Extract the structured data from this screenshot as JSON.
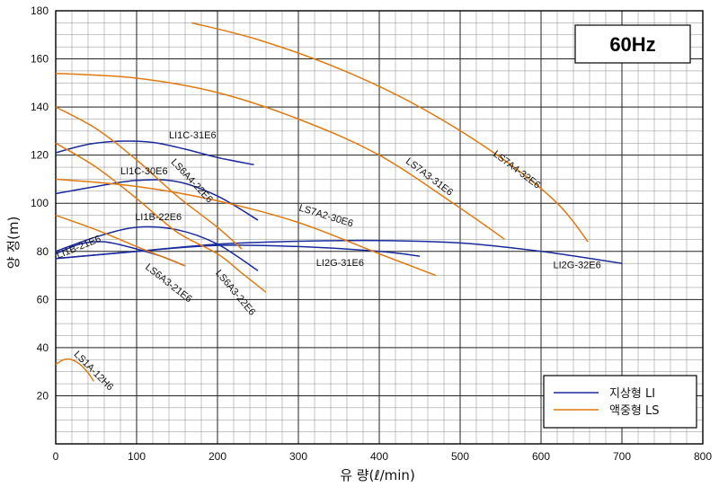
{
  "chart_data": {
    "type": "line",
    "x_ticks": [
      "0",
      "100",
      "200",
      "300",
      "400",
      "500",
      "600",
      "700",
      "800"
    ],
    "y_ticks": [
      "20",
      "40",
      "60",
      "80",
      "100",
      "120",
      "140",
      "160",
      "180"
    ],
    "xlim": [
      0,
      800
    ],
    "ylim": [
      0,
      180
    ],
    "xlabel": "유   량(ℓ/min)",
    "ylabel": "양 정(m)",
    "frequency_badge": "60Hz",
    "grid": true,
    "legend_position": "bottom-right",
    "legend": [
      {
        "label": "지상형 LI",
        "color": "#1a2a9c"
      },
      {
        "label": "액중형 LS",
        "color": "#e07a10"
      }
    ],
    "series": [
      {
        "name": "LI1C-31E6",
        "family": "LI",
        "color": "#1a2a9c",
        "x": [
          0,
          40,
          80,
          120,
          160,
          200,
          245
        ],
        "y": [
          121,
          124.5,
          125.8,
          125.3,
          122.5,
          119,
          116
        ]
      },
      {
        "name": "LI1C-30E6",
        "family": "LI",
        "color": "#1a2a9c",
        "x": [
          0,
          50,
          100,
          150,
          200,
          250
        ],
        "y": [
          104,
          107,
          109.5,
          109,
          103,
          93
        ]
      },
      {
        "name": "LI1B-22E6",
        "family": "LI",
        "color": "#1a2a9c",
        "x": [
          0,
          50,
          100,
          150,
          200,
          250
        ],
        "y": [
          80,
          86,
          90,
          89,
          83,
          72
        ]
      },
      {
        "name": "LI1B-21E6",
        "family": "LI",
        "color": "#1a2a9c",
        "x": [
          0,
          30,
          60,
          100,
          130,
          160
        ],
        "y": [
          79,
          83,
          84,
          81,
          78,
          74
        ]
      },
      {
        "name": "LI2G-31E6",
        "family": "LI",
        "color": "#1a2a9c",
        "x": [
          0,
          100,
          200,
          300,
          400,
          450
        ],
        "y": [
          77,
          80,
          82.5,
          82,
          80,
          78
        ]
      },
      {
        "name": "LI2G-32E6",
        "family": "LI",
        "color": "#1a2a9c",
        "x": [
          0,
          100,
          200,
          300,
          400,
          500,
          600,
          700
        ],
        "y": [
          77,
          80,
          83,
          84.2,
          84.5,
          83.5,
          80,
          75
        ]
      },
      {
        "name": "LS1A-12H6",
        "family": "LS",
        "color": "#e07a10",
        "x": [
          0,
          10,
          20,
          30,
          40,
          47
        ],
        "y": [
          33,
          35,
          35,
          33,
          29.5,
          26
        ]
      },
      {
        "name": "LS6A3-21E6",
        "family": "LS",
        "color": "#e07a10",
        "x": [
          0,
          50,
          100,
          130,
          160
        ],
        "y": [
          95,
          89,
          82,
          78,
          74
        ]
      },
      {
        "name": "LS6A3-22E6",
        "family": "LS",
        "color": "#e07a10",
        "x": [
          0,
          50,
          100,
          150,
          200,
          230,
          260
        ],
        "y": [
          125,
          115,
          102,
          88,
          79,
          71,
          63
        ]
      },
      {
        "name": "LS6A4-22E6",
        "family": "LS",
        "color": "#e07a10",
        "x": [
          0,
          50,
          100,
          150,
          200,
          230
        ],
        "y": [
          140,
          131,
          118,
          103,
          90,
          81
        ]
      },
      {
        "name": "LS7A2-30E6",
        "family": "LS",
        "color": "#e07a10",
        "x": [
          0,
          100,
          200,
          300,
          400,
          470
        ],
        "y": [
          110,
          107,
          101,
          92,
          79,
          70
        ]
      },
      {
        "name": "LS7A3-31E6",
        "family": "LS",
        "color": "#e07a10",
        "x": [
          0,
          100,
          200,
          300,
          400,
          500,
          555
        ],
        "y": [
          154,
          152,
          146,
          135,
          120,
          98,
          85
        ]
      },
      {
        "name": "LS7A4-32E6",
        "family": "LS",
        "color": "#e07a10",
        "x": [
          168,
          250,
          350,
          450,
          550,
          620,
          658
        ],
        "y": [
          175,
          168,
          156,
          140,
          119,
          100,
          84
        ]
      }
    ],
    "annotations": [
      {
        "text": "LI1C-31E6",
        "x": 140,
        "y": 127,
        "rotate": 0
      },
      {
        "text": "LS6A4-22E6",
        "x": 142,
        "y": 117,
        "rotate": 47
      },
      {
        "text": "LI1C-30E6",
        "x": 80,
        "y": 112,
        "rotate": 0
      },
      {
        "text": "LI1B-22E6",
        "x": 98,
        "y": 93,
        "rotate": 0
      },
      {
        "text": "LI1B-21E6",
        "x": 3,
        "y": 77,
        "rotate": -22
      },
      {
        "text": "LS6A3-21E6",
        "x": 110,
        "y": 73,
        "rotate": 38
      },
      {
        "text": "LS6A3-22E6",
        "x": 197,
        "y": 71,
        "rotate": 50
      },
      {
        "text": "LS7A2-30E6",
        "x": 300,
        "y": 97,
        "rotate": 17
      },
      {
        "text": "LI2G-31E6",
        "x": 322,
        "y": 74,
        "rotate": 0
      },
      {
        "text": "LI2G-32E6",
        "x": 615,
        "y": 73,
        "rotate": 0
      },
      {
        "text": "LS7A3-31E6",
        "x": 432,
        "y": 117,
        "rotate": 37
      },
      {
        "text": "LS7A4-32E6",
        "x": 540,
        "y": 120,
        "rotate": 37
      },
      {
        "text": "LS1A-12H6",
        "x": 22,
        "y": 37,
        "rotate": 45
      }
    ]
  }
}
